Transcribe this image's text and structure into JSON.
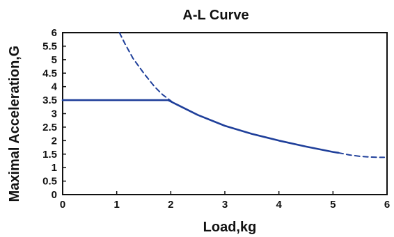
{
  "chart_data": {
    "type": "line",
    "title": "A-L Curve",
    "xlabel": "Load,kg",
    "ylabel": "Maximal Acceleration,G",
    "xlim": [
      0,
      6
    ],
    "ylim": [
      0,
      6
    ],
    "x_ticks": [
      "0",
      "1",
      "2",
      "3",
      "4",
      "5",
      "6"
    ],
    "y_ticks": [
      "0",
      "0.5",
      "1",
      "1.5",
      "2",
      "2.5",
      "3",
      "3.5",
      "4",
      "4.5",
      "5",
      "5.5",
      "6"
    ],
    "grid": false,
    "legend": "none",
    "series": [
      {
        "style": "solid",
        "color": "#1f3f9a",
        "x": [
          0,
          1,
          1.95,
          2.05,
          2.5,
          3,
          3.5,
          4,
          4.5,
          5,
          5.1
        ],
        "y": [
          3.5,
          3.5,
          3.5,
          3.4,
          2.95,
          2.55,
          2.25,
          2.0,
          1.78,
          1.58,
          1.55
        ]
      },
      {
        "style": "dashed",
        "color": "#1f3f9a",
        "x": [
          1.05,
          1.15,
          1.3,
          1.5,
          1.7,
          1.85,
          1.95,
          2.05
        ],
        "y": [
          6.0,
          5.6,
          5.05,
          4.5,
          4.0,
          3.7,
          3.55,
          3.4
        ]
      },
      {
        "style": "dashed",
        "color": "#1f3f9a",
        "x": [
          5.1,
          5.3,
          5.5,
          5.7,
          5.85,
          5.95
        ],
        "y": [
          1.55,
          1.47,
          1.42,
          1.39,
          1.38,
          1.38
        ]
      }
    ]
  }
}
